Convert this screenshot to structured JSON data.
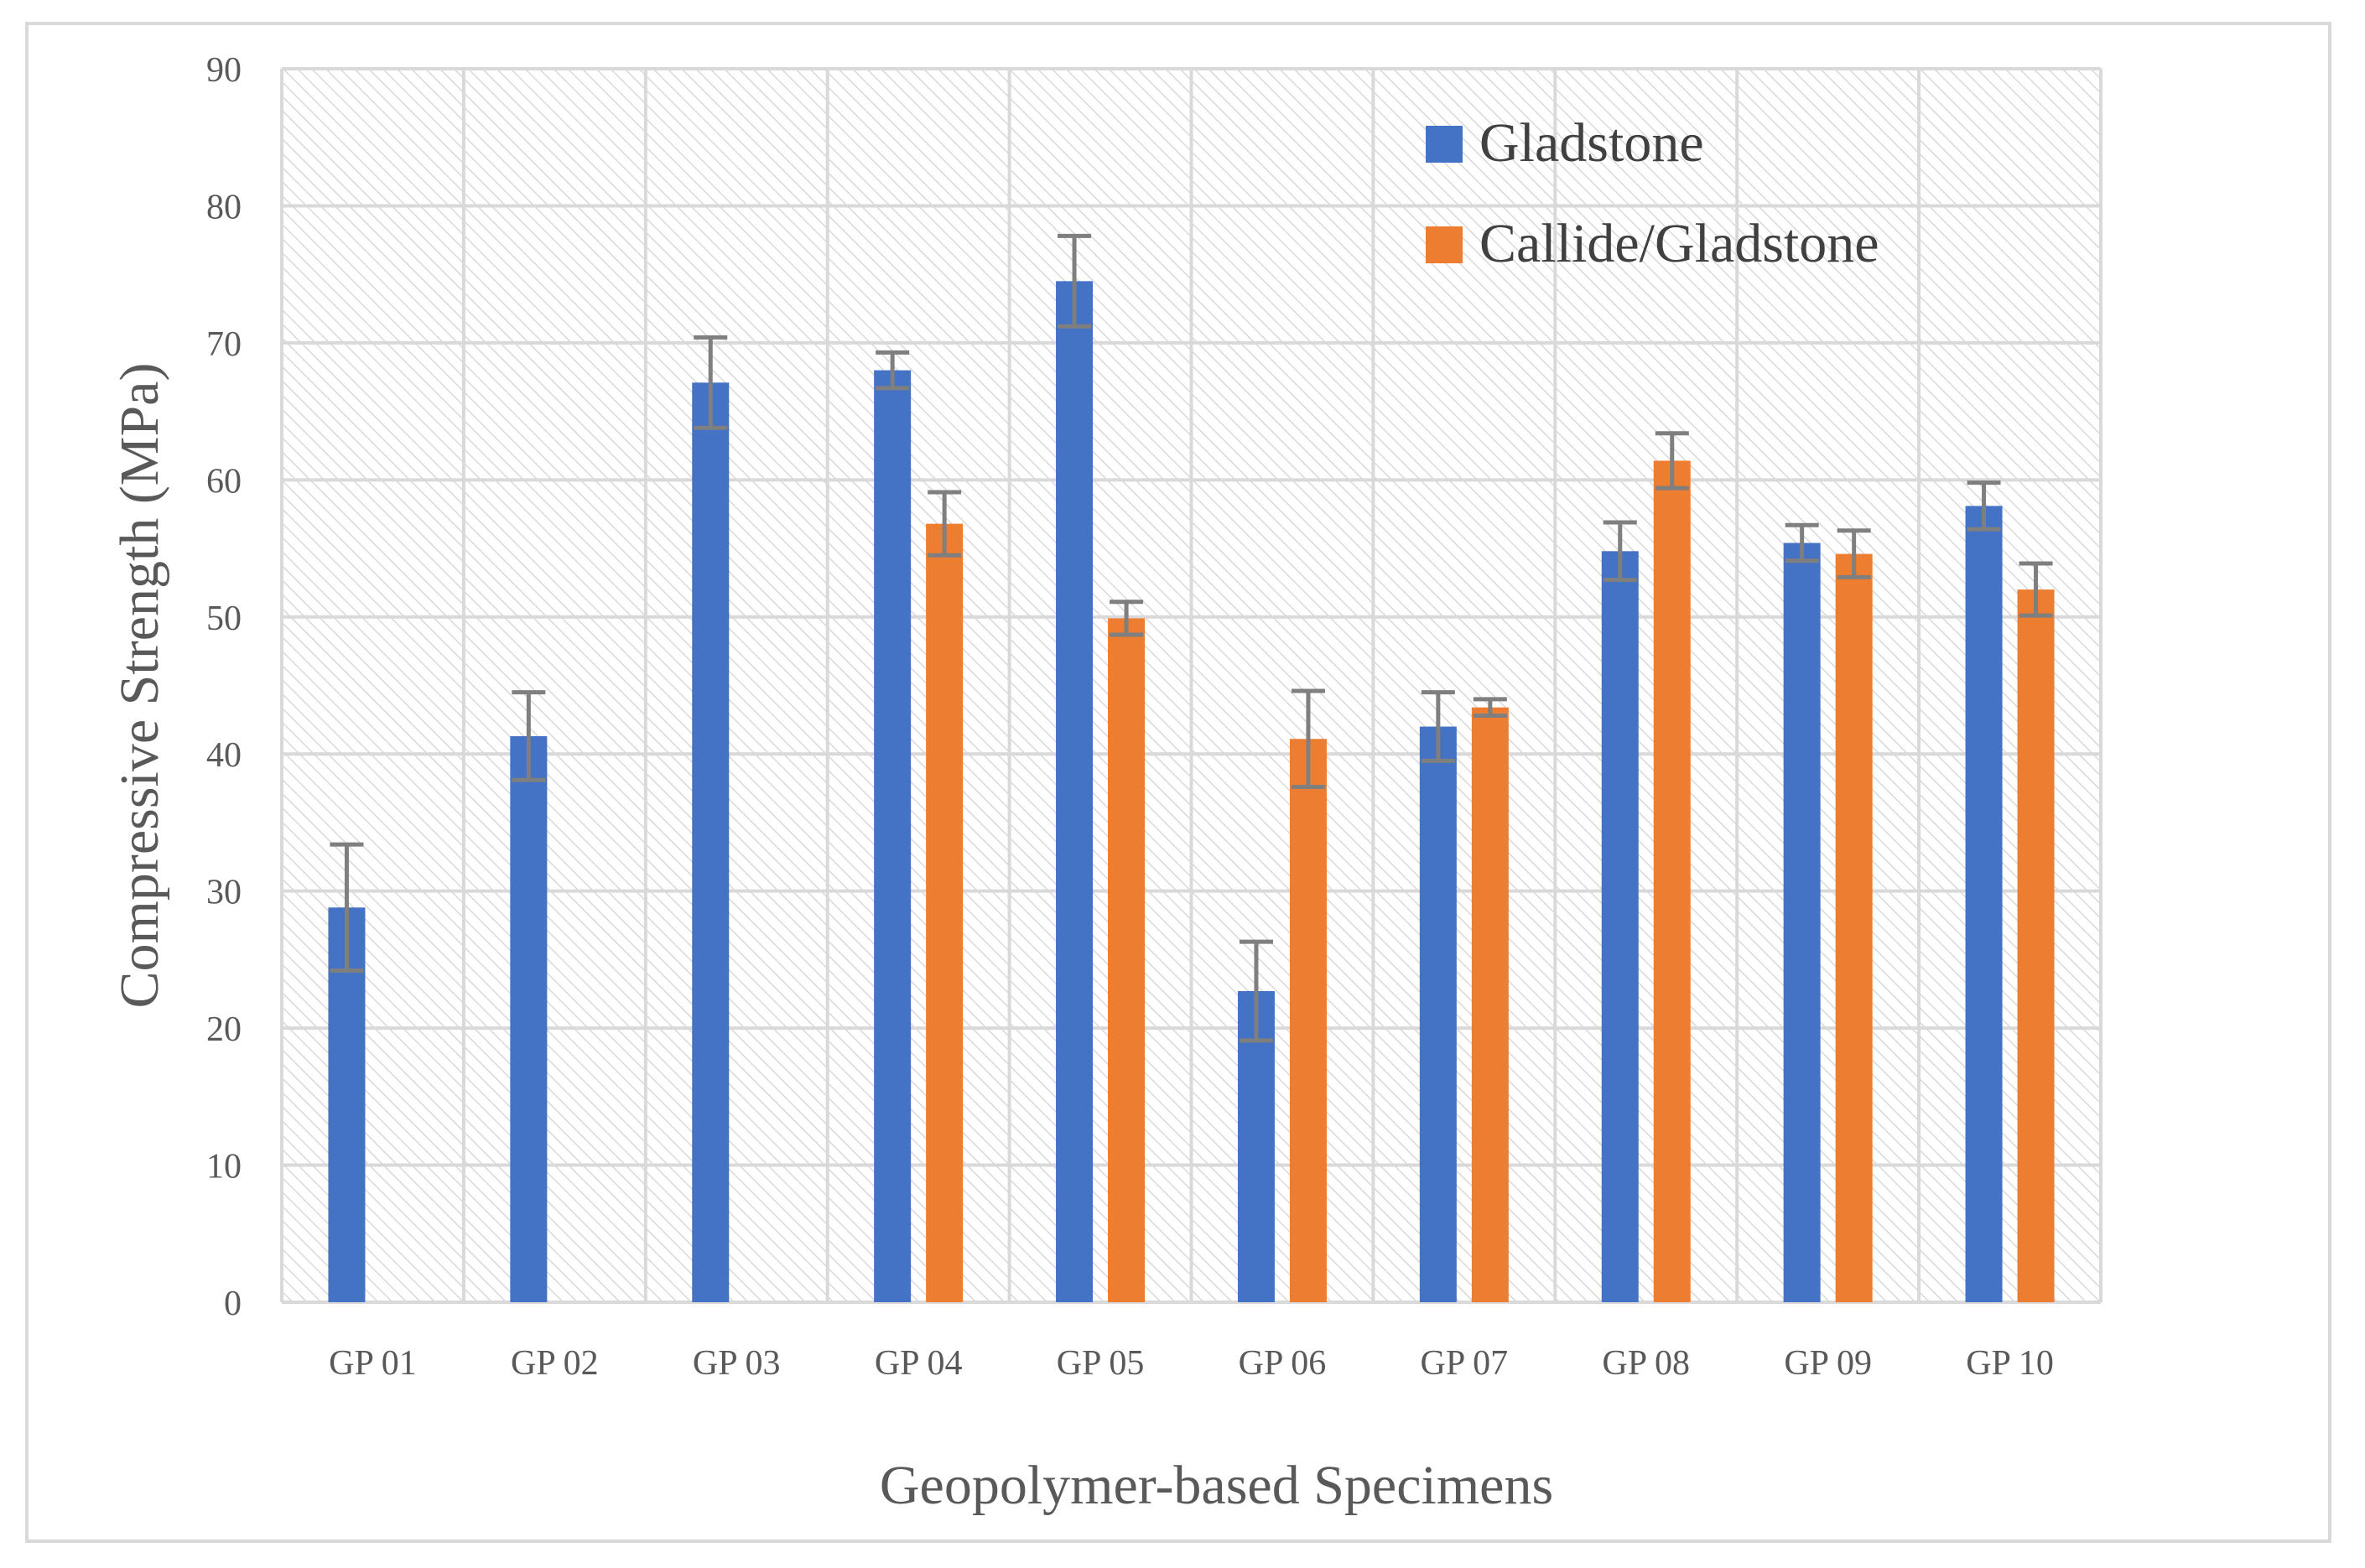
{
  "chart_data": {
    "type": "bar",
    "title": "",
    "xlabel": "Geopolymer-based Specimens",
    "ylabel": "Compressive  Strength (MPa)",
    "ylim": [
      0,
      90
    ],
    "yticks": [
      "0",
      "10",
      "20",
      "30",
      "40",
      "50",
      "60",
      "70",
      "80",
      "90"
    ],
    "categories": [
      "GP 01",
      "GP 02",
      "GP 03",
      "GP 04",
      "GP 05",
      "GP 06",
      "GP 07",
      "GP 08",
      "GP 09",
      "GP 10"
    ],
    "grid": true,
    "legend_position": "top-right",
    "series": [
      {
        "name": "Gladstone",
        "color": "#4472c4",
        "values": [
          28.8,
          41.3,
          67.1,
          68.0,
          74.5,
          22.7,
          42.0,
          54.8,
          55.4,
          58.1
        ],
        "errors": [
          4.6,
          3.2,
          3.3,
          1.3,
          3.3,
          3.6,
          2.5,
          2.1,
          1.3,
          1.7
        ]
      },
      {
        "name": "Callide/Gladstone",
        "color": "#ed7d31",
        "values": [
          null,
          null,
          null,
          56.8,
          49.9,
          41.1,
          43.4,
          61.4,
          54.6,
          52.0
        ],
        "errors": [
          null,
          null,
          null,
          2.3,
          1.2,
          3.5,
          0.6,
          2.0,
          1.7,
          1.9
        ]
      }
    ],
    "error_bar_color": "#7f7f7f"
  }
}
